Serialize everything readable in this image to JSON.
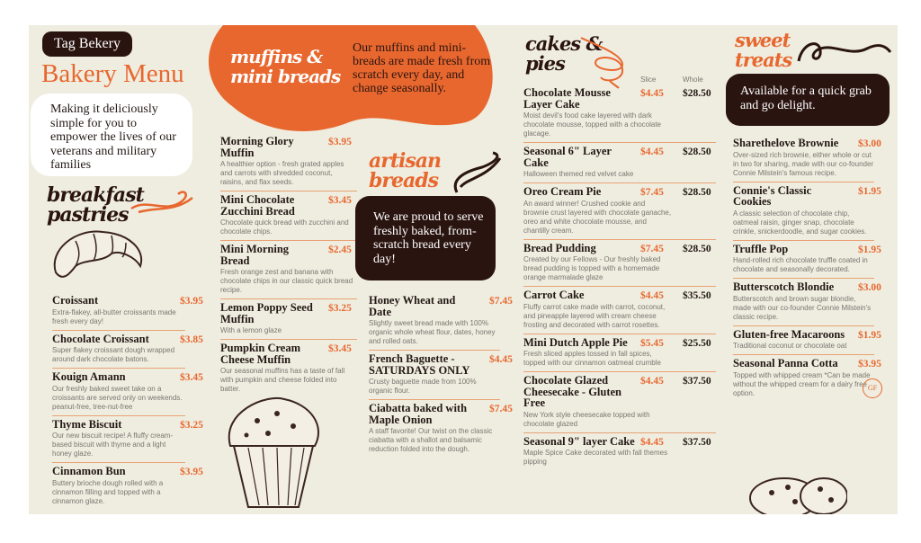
{
  "colors": {
    "accent": "#e8672e",
    "dark": "#2a1410",
    "background": "#efede0"
  },
  "brand": {
    "badge": "Tag Bekery",
    "title": "Bakery Menu",
    "intro": "Making it deliciously simple for you to empower the lives of our veterans and military families"
  },
  "breakfast": {
    "heading_line1": "breakfast",
    "heading_line2": "pastries",
    "image": "croissant-illustration",
    "items": [
      {
        "name": "Croissant",
        "price": "$3.95",
        "desc": "Extra-flakey, all-butter croissants made fresh every day!"
      },
      {
        "name": "Chocolate Croissant",
        "price": "$3.85",
        "desc": "Super flakey croissant dough wrapped around dark chocolate batons."
      },
      {
        "name": "Kouign Amann",
        "price": "$3.45",
        "desc": "Our freshly baked sweet take on a croissants are served only on weekends. peanut-free, tree-nut-free"
      },
      {
        "name": "Thyme Biscuit",
        "price": "$3.25",
        "desc": "Our new biscuit recipe! A fluffy cream-based biscuit with thyme and a light honey glaze."
      },
      {
        "name": "Cinnamon Bun",
        "price": "$3.95",
        "desc": "Buttery brioche dough rolled with a cinnamon filling and topped with a cinnamon glaze."
      }
    ]
  },
  "muffins": {
    "heading_line1": "muffins &",
    "heading_line2": "mini breads",
    "blurb": "Our muffins and mini-breads are made fresh from scratch every day, and change seasonally.",
    "image": "muffin-illustration",
    "items": [
      {
        "name": "Morning Glory Muffin",
        "price": "$3.95",
        "desc": "A healthier option - fresh grated apples and carrots with shredded coconut, raisins, and flax seeds."
      },
      {
        "name": "Mini Chocolate Zucchini Bread",
        "price": "$3.45",
        "desc": "Chocolate quick bread with zucchini and chocolate chips."
      },
      {
        "name": "Mini Morning Bread",
        "price": "$2.45",
        "desc": "Fresh orange zest and banana with chocolate chips in our classic quick bread recipe."
      },
      {
        "name": "Lemon Poppy Seed Muffin",
        "price": "$3.25",
        "desc": "With a lemon glaze"
      },
      {
        "name": "Pumpkin Cream Cheese Muffin",
        "price": "$3.45",
        "desc": "Our seasonal muffins has a taste of fall with pumpkin and cheese folded into batter."
      }
    ]
  },
  "breads": {
    "heading_line1": "artisan",
    "heading_line2": "breads",
    "blurb": "We are proud to serve freshly baked, from-scratch bread every day!",
    "items": [
      {
        "name": "Honey Wheat and Date",
        "price": "$7.45",
        "desc": "Slightly sweet bread made with 100% organic whole wheat flour, dates, honey and rolled oats."
      },
      {
        "name": "French Baguette - SATURDAYS ONLY",
        "price": "$4.45",
        "desc": "Crusty baguette made from 100% organic flour."
      },
      {
        "name": "Ciabatta baked with Maple Onion",
        "price": "$7.45",
        "desc": "A staff favorite! Our twist on the classic ciabatta with a shallot and balsamic reduction folded into the dough."
      }
    ]
  },
  "cakes": {
    "heading_line1": "cakes &",
    "heading_line2": "pies",
    "slice_label": "Slice",
    "whole_label": "Whole",
    "items": [
      {
        "name": "Chocolate Mousse Layer Cake",
        "price": "$4.45",
        "whole": "$28.50",
        "desc": "Moist devil's food cake layered with dark chocolate mousse, topped with a chocolate glacage."
      },
      {
        "name": "Seasonal 6\" Layer Cake",
        "price": "$4.45",
        "whole": "$28.50",
        "desc": "Halloween themed red velvet cake"
      },
      {
        "name": "Oreo Cream Pie",
        "price": "$7.45",
        "whole": "$28.50",
        "desc": "An award winner! Crushed cookie and brownie crust layered with chocolate ganache, oreo and white chocolate mousse, and chantilly cream."
      },
      {
        "name": "Bread Pudding",
        "price": "$7.45",
        "whole": "$28.50",
        "desc": "Created by our Fellows - Our freshly baked bread pudding is topped with a homemade orange marmalade glaze"
      },
      {
        "name": "Carrot Cake",
        "price": "$4.45",
        "whole": "$35.50",
        "desc": "Fluffy carrot cake made with carrot, coconut, and pineapple layered with cream cheese frosting and decorated with carrot rosettes."
      },
      {
        "name": "Mini Dutch Apple Pie",
        "price": "$5.45",
        "whole": "$25.50",
        "desc": "Fresh sliced apples tossed in fall spices, topped with our cinnamon oatmeal crumble"
      },
      {
        "name": "Chocolate Glazed Cheesecake - Gluten Free",
        "price": "$4.45",
        "whole": "$37.50",
        "desc": "New York style cheesecake topped with chocolate glazed"
      },
      {
        "name": "Seasonal 9\" layer Cake",
        "price": "$4.45",
        "whole": "$37.50",
        "desc": "Maple Spice Cake decorated with fall themes pipping"
      }
    ]
  },
  "sweets": {
    "heading_line1": "sweet",
    "heading_line2": "treats",
    "blurb": "Available for a quick grab and go delight.",
    "gf_badge": "GF",
    "image": "cookies-illustration",
    "items": [
      {
        "name": "Sharethelove Brownie",
        "price": "$3.00",
        "desc": "Over-sized rich brownie, either whole or cut in two for sharing, made with our co-founder Connie Milstein's famous recipe."
      },
      {
        "name": "Connie's Classic Cookies",
        "price": "$1.95",
        "desc": "A classic selection of chocolate chip, oatmeal raisin, ginger snap, chocolate crinkle, snickerdoodle, and sugar cookies."
      },
      {
        "name": "Truffle Pop",
        "price": "$1.95",
        "desc": "Hand-rolled rich chocolate truffle coated in chocolate and seasonally decorated."
      },
      {
        "name": "Butterscotch Blondie",
        "price": "$3.00",
        "desc": "Butterscotch and brown sugar blondie, made with our co-founder Connie Milstein's classic recipe."
      },
      {
        "name": "Gluten-free Macaroons",
        "price": "$1.95",
        "desc": "Traditional coconut or chocolate oat"
      },
      {
        "name": "Seasonal Panna Cotta",
        "price": "$3.95",
        "desc": "Topped with whipped cream *Can be made without the whipped cream for a dairy free option."
      }
    ]
  }
}
